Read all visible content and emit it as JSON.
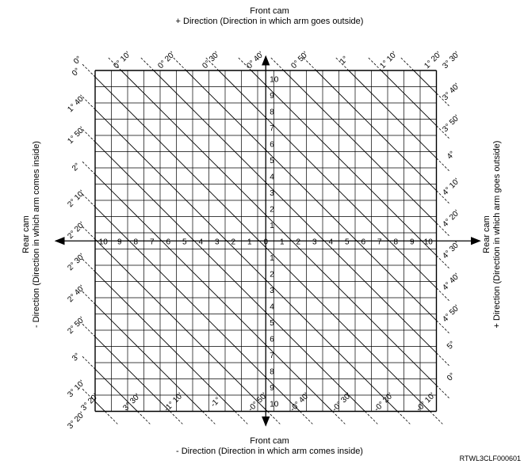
{
  "captions": {
    "top_title": "Front cam",
    "top_subtitle": "+ Direction (Direction in which arm goes outside)",
    "bottom_title": "Front cam",
    "bottom_subtitle": "- Direction (Direction in which arm comes inside)",
    "left_title": "Rear cam",
    "left_subtitle": "- Direction (Direction in which arm comes inside)",
    "right_title": "Rear cam",
    "right_subtitle": "+ Direction (Direction in which arm goes outside)"
  },
  "figure_code": "RTWL3CLF000601",
  "axis_scale": {
    "x_labels": [
      "10",
      "9",
      "8",
      "7",
      "6",
      "5",
      "4",
      "3",
      "2",
      "1",
      "0",
      "1",
      "2",
      "3",
      "4",
      "5",
      "6",
      "7",
      "8",
      "9",
      "10"
    ],
    "y_labels": [
      "10",
      "9",
      "8",
      "7",
      "6",
      "5",
      "4",
      "3",
      "2",
      "1",
      "0",
      "1",
      "2",
      "3",
      "4",
      "5",
      "6",
      "7",
      "8",
      "9",
      "10"
    ]
  },
  "angle_labels": {
    "top": [
      "0°",
      "0° 10'",
      "0° 20'",
      "0° 30'",
      "0° 40'",
      "0° 50'",
      "1°",
      "1° 10'",
      "1° 20'"
    ],
    "right": [
      "3° 30'",
      "3° 40'",
      "3° 50'",
      "4°",
      "4° 10'",
      "4° 20'",
      "4° 30'",
      "4° 40'",
      "4° 50'",
      "5°",
      "0°"
    ],
    "left": [
      "0°",
      "1° 40'",
      "1° 50'",
      "2°",
      "2° 10'",
      "2° 20'",
      "2° 30'",
      "2° 40'",
      "2° 50'",
      "3°",
      "3° 10'",
      "3° 20'"
    ],
    "bottom": [
      "3° 20'",
      "3° 30'",
      "-1° 10'",
      "-1°",
      "-0° 50'",
      "-0° 40'",
      "-0° 30'",
      "-0° 20'",
      "-0° 10'"
    ]
  }
}
